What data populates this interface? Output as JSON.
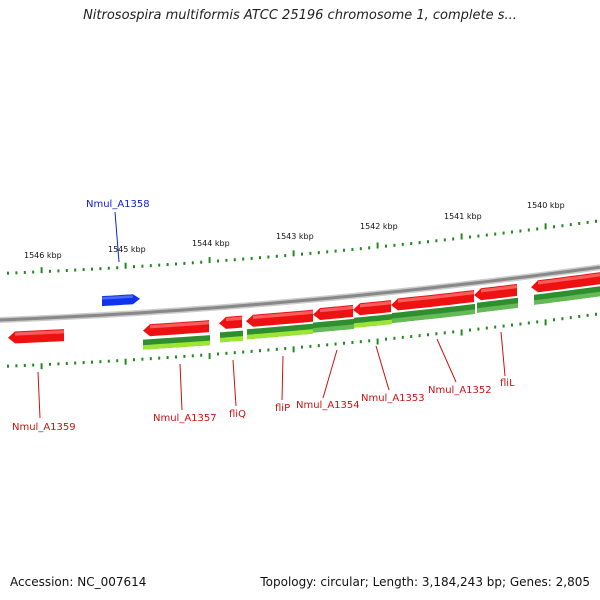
{
  "title": "Nitrosospira multiformis ATCC 25196 chromosome 1, complete s...",
  "footer": {
    "accession": "Accession: NC_007614",
    "summary": "Topology: circular; Length: 3,184,243 bp; Genes: 2,805"
  },
  "colors": {
    "forward_gene": "#ee1111",
    "forward_gene_light": "#ff6f6f",
    "highlight_gene": "#1133ee",
    "highlight_gene_light": "#5577ff",
    "reverse_cds": "#2f8f2f",
    "reverse_cds_light": "#6cbf5c",
    "reverse_other": "#aaee33",
    "tick_green": "#228822",
    "backbone": "#888888",
    "label_red": "#cc1111",
    "label_blue": "#1122cc"
  },
  "scale": {
    "kbp_labels": [
      "1546 kbp",
      "1545 kbp",
      "1544 kbp",
      "1543 kbp",
      "1542 kbp",
      "1541 kbp",
      "1540 kbp"
    ]
  },
  "gene_labels": [
    {
      "name": "Nmul_A1358",
      "color": "blue"
    },
    {
      "name": "Nmul_A1359",
      "color": "red"
    },
    {
      "name": "Nmul_A1357",
      "color": "red"
    },
    {
      "name": "fliQ",
      "color": "red"
    },
    {
      "name": "fliP",
      "color": "red"
    },
    {
      "name": "Nmul_A1354",
      "color": "red"
    },
    {
      "name": "Nmul_A1353",
      "color": "red"
    },
    {
      "name": "Nmul_A1352",
      "color": "red"
    },
    {
      "name": "fliL",
      "color": "red"
    }
  ]
}
